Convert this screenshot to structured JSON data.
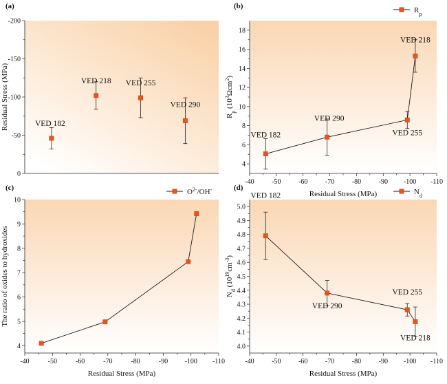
{
  "chart_data": [
    {
      "type": "scatter",
      "panel": "(a)",
      "ylabel": "Residual Stress (MPa)",
      "xlabel": "",
      "ylim": [
        0,
        -200
      ],
      "yticks": [
        0,
        -50,
        -100,
        -150,
        -200
      ],
      "ytick_labels": [
        "0",
        "-50",
        "-100",
        "-150",
        "-200"
      ],
      "points": [
        {
          "label": "VED 182",
          "x": 1,
          "y": -46,
          "err": 14
        },
        {
          "label": "VED 218",
          "x": 2,
          "y": -102,
          "err": 18
        },
        {
          "label": "VED 255",
          "x": 3,
          "y": -99,
          "err": 26
        },
        {
          "label": "VED 290",
          "x": 4,
          "y": -69,
          "err": 30
        }
      ],
      "line": false,
      "legend": "",
      "marker_color": "#e8541c",
      "background": "gradient-orange"
    },
    {
      "type": "line",
      "panel": "(b)",
      "xlabel": "Residual Stress (MPa)",
      "ylabel_main": "R",
      "ylabel_sub": "p",
      "ylabel_unit_a": " (10",
      "ylabel_sup": "3",
      "ylabel_unit_b": "Ωcm",
      "ylabel_sup2": "2",
      "ylabel_unit_c": ")",
      "xlim": [
        -40,
        -110
      ],
      "ylim": [
        3,
        19
      ],
      "xticks": [
        -40,
        -50,
        -60,
        -70,
        -80,
        -90,
        -100,
        -110
      ],
      "xtick_labels": [
        "-40",
        "-50",
        "-60",
        "-70",
        "-80",
        "-90",
        "-100",
        "-110"
      ],
      "yticks": [
        4,
        6,
        8,
        10,
        12,
        14,
        16,
        18
      ],
      "ytick_labels": [
        "4",
        "6",
        "8",
        "10",
        "12",
        "14",
        "16",
        "18"
      ],
      "points": [
        {
          "label": "VED 182",
          "x": -46,
          "y": 5.05,
          "err": 1.6
        },
        {
          "label": "VED 290",
          "x": -69,
          "y": 6.8,
          "err": 1.9
        },
        {
          "label": "VED 255",
          "x": -99,
          "y": 8.6,
          "err": 0.9
        },
        {
          "label": "VED 218",
          "x": -102,
          "y": 15.3,
          "err": 1.7
        }
      ],
      "legend_main": "R",
      "legend_sub": "p",
      "legend_position": "top-right",
      "marker_color": "#e8541c"
    },
    {
      "type": "line",
      "panel": "(c)",
      "xlabel": "Residual Stress (MPa)",
      "ylabel": "The ratio of oxides to hydroxides",
      "xlim": [
        -40,
        -110
      ],
      "ylim": [
        3.7,
        10
      ],
      "xticks": [
        -40,
        -50,
        -60,
        -70,
        -80,
        -90,
        -100,
        -110
      ],
      "xtick_labels": [
        "-40",
        "-50",
        "-60",
        "-70",
        "-80",
        "-90",
        "-100",
        "-110"
      ],
      "yticks": [
        4,
        5,
        6,
        7,
        8,
        9,
        10
      ],
      "ytick_labels": [
        "4",
        "5",
        "6",
        "7",
        "8",
        "9",
        "10"
      ],
      "points": [
        {
          "x": -46,
          "y": 4.1
        },
        {
          "x": -69,
          "y": 4.98
        },
        {
          "x": -99,
          "y": 7.45
        },
        {
          "x": -102,
          "y": 9.42
        }
      ],
      "legend_a": "O",
      "legend_sup": "2-",
      "legend_b": "/OH",
      "legend_sup2": "-",
      "legend_position": "top-right",
      "marker_color": "#e8541c"
    },
    {
      "type": "line",
      "panel": "(d)",
      "xlabel": "Residual Stress (MPa)",
      "ylabel_main": "N",
      "ylabel_sub": "d",
      "ylabel_unit_a": " (10",
      "ylabel_sup": "19",
      "ylabel_unit_b": "cm",
      "ylabel_sup2": "-3",
      "ylabel_unit_c": ")",
      "xlim": [
        -40,
        -110
      ],
      "ylim": [
        3.95,
        5.05
      ],
      "xticks": [
        -40,
        -50,
        -60,
        -70,
        -80,
        -90,
        -100,
        -110
      ],
      "xtick_labels": [
        "-40",
        "-50",
        "-60",
        "-70",
        "-80",
        "-90",
        "-100",
        "-110"
      ],
      "yticks": [
        4.0,
        4.1,
        4.2,
        4.3,
        4.4,
        4.5,
        4.6,
        4.7,
        4.8,
        4.9,
        5.0
      ],
      "ytick_labels": [
        "4.0",
        "4.1",
        "4.2",
        "4.3",
        "4.4",
        "4.5",
        "4.6",
        "4.7",
        "4.8",
        "4.9",
        "5.0"
      ],
      "points": [
        {
          "label": "VED 182",
          "x": -46,
          "y": 4.79,
          "err": 0.17
        },
        {
          "label": "VED 290",
          "x": -69,
          "y": 4.38,
          "err": 0.09
        },
        {
          "label": "VED 255",
          "x": -99,
          "y": 4.26,
          "err": 0.045
        },
        {
          "label": "VED 218",
          "x": -102,
          "y": 4.175,
          "err": 0.105
        }
      ],
      "legend_main": "N",
      "legend_sub": "d",
      "legend_position": "top-right",
      "marker_color": "#e8541c"
    }
  ]
}
